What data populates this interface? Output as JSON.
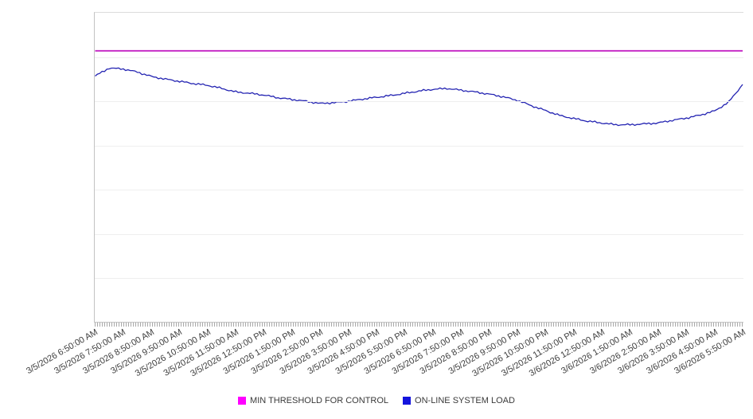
{
  "chart_data": {
    "type": "line",
    "title": "",
    "xlabel": "",
    "ylabel": "",
    "y_axis_tick_labels": "none",
    "ylim": [
      0,
      7
    ],
    "y_gridline_interval": 1,
    "grid": "horizontal",
    "legend_position": "bottom-center",
    "x_tick_labels": [
      "3/5/2026 6:50:00 AM",
      "3/5/2026 7:50:00 AM",
      "3/5/2026 8:50:00 AM",
      "3/5/2026 9:50:00 AM",
      "3/5/2026 10:50:00 AM",
      "3/5/2026 11:50:00 AM",
      "3/5/2026 12:50:00 PM",
      "3/5/2026 1:50:00 PM",
      "3/5/2026 2:50:00 PM",
      "3/5/2026 3:50:00 PM",
      "3/5/2026 4:50:00 PM",
      "3/5/2026 5:50:00 PM",
      "3/5/2026 6:50:00 PM",
      "3/5/2026 7:50:00 PM",
      "3/5/2026 8:50:00 PM",
      "3/5/2026 9:50:00 PM",
      "3/5/2026 10:50:00 PM",
      "3/5/2026 11:50:00 PM",
      "3/6/2026 12:50:00 AM",
      "3/6/2026 1:50:00 AM",
      "3/6/2026 2:50:00 AM",
      "3/6/2026 3:50:00 AM",
      "3/6/2026 4:50:00 AM",
      "3/6/2026 5:50:00 AM"
    ],
    "series": [
      {
        "name": "MIN THRESHOLD FOR CONTROL",
        "type": "horizontal-threshold-line",
        "line_color": "#c322c3",
        "legend_color": "#ff00ff",
        "value": 6.14
      },
      {
        "name": "ON-LINE SYSTEM LOAD",
        "type": "line",
        "line_color": "#2323b2",
        "legend_color": "#1414dd",
        "x_start_label": "3/5/2026 6:50:00 AM",
        "x_interval_minutes": 30,
        "values": [
          5.57,
          5.75,
          5.73,
          5.66,
          5.56,
          5.5,
          5.45,
          5.4,
          5.36,
          5.29,
          5.21,
          5.18,
          5.14,
          5.08,
          5.04,
          5.0,
          4.95,
          4.97,
          5.0,
          5.05,
          5.09,
          5.13,
          5.18,
          5.23,
          5.27,
          5.29,
          5.25,
          5.21,
          5.16,
          5.1,
          5.02,
          4.9,
          4.79,
          4.68,
          4.61,
          4.55,
          4.51,
          4.47,
          4.47,
          4.49,
          4.51,
          4.57,
          4.62,
          4.69,
          4.78,
          4.98,
          5.38
        ]
      }
    ],
    "legend": [
      {
        "label": "MIN THRESHOLD FOR CONTROL",
        "color": "#ff00ff"
      },
      {
        "label": "ON-LINE SYSTEM LOAD",
        "color": "#1414dd"
      }
    ]
  }
}
